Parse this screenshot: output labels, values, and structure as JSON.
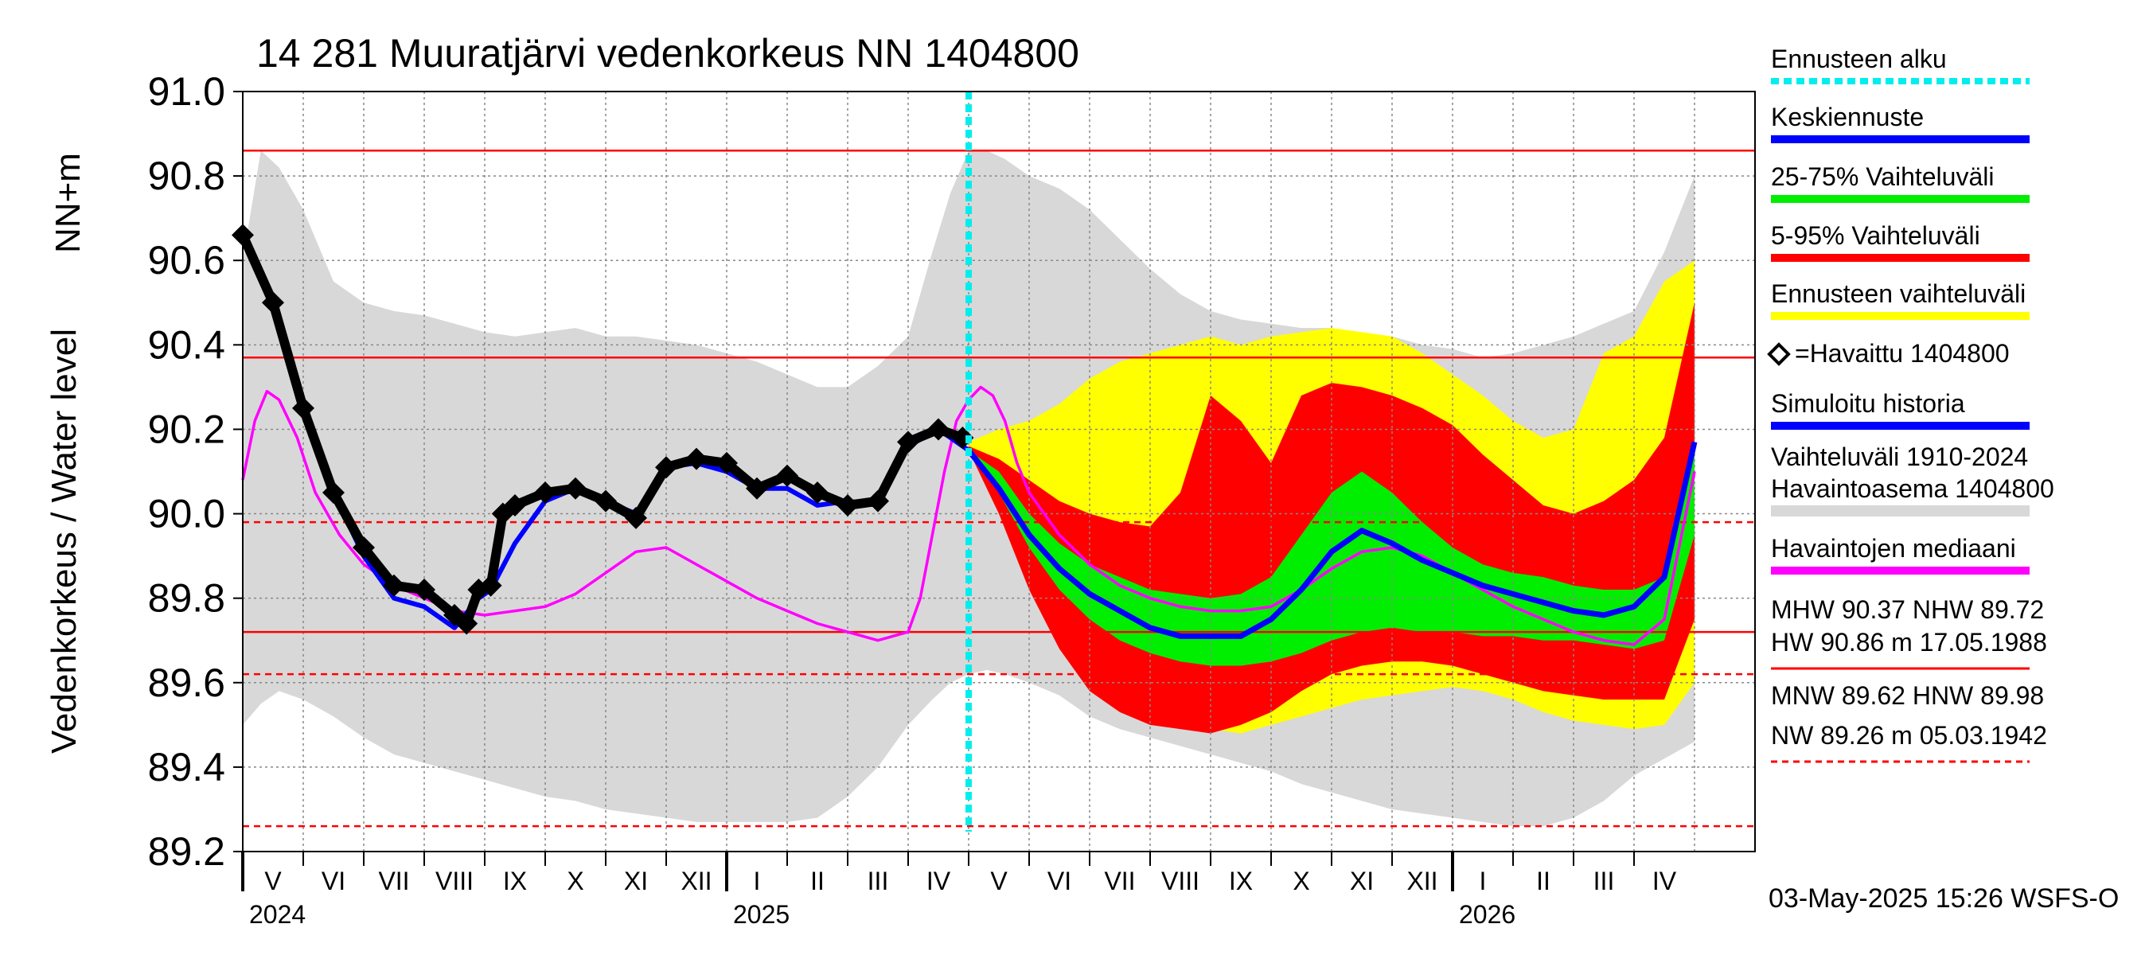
{
  "chart_data": {
    "type": "line",
    "title": "14 281 Muuratjärvi vedenkorkeus NN 1404800",
    "ylabel_line1": "NN+m",
    "ylabel_line2": "Vedenkorkeus / Water level",
    "ylim": [
      89.2,
      91.0
    ],
    "yticks": [
      89.2,
      89.4,
      89.6,
      89.8,
      90.0,
      90.2,
      90.4,
      90.6,
      90.8,
      91.0
    ],
    "x_axis": {
      "start_month_index": 0,
      "n_months": 25,
      "forecast_start": 12.0
    },
    "month_labels": [
      "V",
      "VI",
      "VII",
      "VIII",
      "IX",
      "X",
      "XI",
      "XII",
      "I",
      "II",
      "III",
      "IV",
      "V",
      "VI",
      "VII",
      "VIII",
      "IX",
      "X",
      "XI",
      "XII",
      "I",
      "II",
      "III",
      "IV"
    ],
    "year_labels": [
      {
        "label": "2024",
        "at_month": 0
      },
      {
        "label": "2025",
        "at_month": 8
      },
      {
        "label": "2026",
        "at_month": 20
      }
    ],
    "reference_lines": [
      {
        "name": "HW",
        "value": 90.86,
        "style": "solid"
      },
      {
        "name": "MHW",
        "value": 90.37,
        "style": "solid"
      },
      {
        "name": "HNW",
        "value": 89.98,
        "style": "dashed"
      },
      {
        "name": "NHW",
        "value": 89.72,
        "style": "solid"
      },
      {
        "name": "MNW",
        "value": 89.62,
        "style": "dashed"
      },
      {
        "name": "NW",
        "value": 89.26,
        "style": "dashed"
      }
    ],
    "historical_range": {
      "x": [
        0,
        0.3,
        0.6,
        1.0,
        1.5,
        2.0,
        2.5,
        3.0,
        3.5,
        4.0,
        4.5,
        5.0,
        5.5,
        6.0,
        6.5,
        7.0,
        7.5,
        8.0,
        8.5,
        9.0,
        9.5,
        10.0,
        10.5,
        11.0,
        11.4,
        11.7,
        12.0,
        12.3,
        12.6,
        13.0,
        13.5,
        14.0,
        14.5,
        15.0,
        15.5,
        16.0,
        16.5,
        17.0,
        17.5,
        18.0,
        18.5,
        19.0,
        19.5,
        20.0,
        20.5,
        21.0,
        21.5,
        22.0,
        22.5,
        23.0,
        23.5,
        24.0
      ],
      "upper": [
        90.6,
        90.86,
        90.82,
        90.72,
        90.55,
        90.5,
        90.48,
        90.47,
        90.45,
        90.43,
        90.42,
        90.43,
        90.44,
        90.42,
        90.42,
        90.41,
        90.4,
        90.38,
        90.36,
        90.33,
        90.3,
        90.3,
        90.35,
        90.42,
        90.62,
        90.76,
        90.86,
        90.86,
        90.84,
        90.8,
        90.77,
        90.72,
        90.65,
        90.58,
        90.52,
        90.48,
        90.46,
        90.45,
        90.44,
        90.44,
        90.42,
        90.42,
        90.4,
        90.39,
        90.37,
        90.38,
        90.4,
        90.42,
        90.45,
        90.48,
        90.62,
        90.8
      ],
      "lower": [
        89.5,
        89.55,
        89.58,
        89.56,
        89.52,
        89.47,
        89.43,
        89.41,
        89.39,
        89.37,
        89.35,
        89.33,
        89.32,
        89.3,
        89.29,
        89.28,
        89.27,
        89.27,
        89.27,
        89.27,
        89.28,
        89.33,
        89.4,
        89.5,
        89.56,
        89.6,
        89.62,
        89.63,
        89.62,
        89.6,
        89.57,
        89.52,
        89.49,
        89.47,
        89.45,
        89.43,
        89.41,
        89.39,
        89.36,
        89.34,
        89.32,
        89.3,
        89.29,
        89.28,
        89.27,
        89.26,
        89.26,
        89.28,
        89.32,
        89.38,
        89.42,
        89.46
      ]
    },
    "bands": [
      {
        "name": "Ennusteen vaihteluväli",
        "color": "#ffff00",
        "x": [
          12.0,
          12.5,
          13.0,
          13.5,
          14.0,
          14.5,
          15.0,
          15.5,
          16.0,
          16.5,
          17.0,
          17.5,
          18.0,
          18.5,
          19.0,
          19.5,
          20.0,
          20.5,
          21.0,
          21.5,
          22.0,
          22.5,
          23.0,
          23.5,
          24.0
        ],
        "upper": [
          90.17,
          90.2,
          90.22,
          90.26,
          90.32,
          90.36,
          90.38,
          90.4,
          90.42,
          90.4,
          90.42,
          90.43,
          90.44,
          90.43,
          90.42,
          90.38,
          90.33,
          90.28,
          90.22,
          90.18,
          90.2,
          90.38,
          90.42,
          90.55,
          90.6
        ],
        "lower": [
          90.15,
          90.02,
          89.88,
          89.75,
          89.65,
          89.58,
          89.53,
          89.5,
          89.49,
          89.48,
          89.5,
          89.52,
          89.54,
          89.56,
          89.57,
          89.58,
          89.59,
          89.58,
          89.56,
          89.53,
          89.51,
          89.5,
          89.49,
          89.5,
          89.6
        ]
      },
      {
        "name": "5-95% Vaihteluväli",
        "color": "#ff0000",
        "x": [
          12.0,
          12.5,
          13.0,
          13.5,
          14.0,
          14.5,
          15.0,
          15.5,
          16.0,
          16.5,
          17.0,
          17.5,
          18.0,
          18.5,
          19.0,
          19.5,
          20.0,
          20.5,
          21.0,
          21.5,
          22.0,
          22.5,
          23.0,
          23.5,
          24.0
        ],
        "upper": [
          90.16,
          90.13,
          90.08,
          90.03,
          90.0,
          89.98,
          89.97,
          90.05,
          90.28,
          90.22,
          90.12,
          90.28,
          90.31,
          90.3,
          90.28,
          90.25,
          90.21,
          90.14,
          90.08,
          90.02,
          90.0,
          90.03,
          90.08,
          90.18,
          90.5
        ],
        "lower": [
          90.15,
          90.0,
          89.82,
          89.68,
          89.58,
          89.53,
          89.5,
          89.49,
          89.48,
          89.5,
          89.53,
          89.58,
          89.62,
          89.64,
          89.65,
          89.65,
          89.64,
          89.62,
          89.6,
          89.58,
          89.57,
          89.56,
          89.56,
          89.56,
          89.75
        ]
      },
      {
        "name": "25-75% Vaihteluväli",
        "color": "#00ee00",
        "x": [
          12.0,
          12.5,
          13.0,
          13.5,
          14.0,
          14.5,
          15.0,
          15.5,
          16.0,
          16.5,
          17.0,
          17.5,
          18.0,
          18.5,
          19.0,
          19.5,
          20.0,
          20.5,
          21.0,
          21.5,
          22.0,
          22.5,
          23.0,
          23.5,
          24.0
        ],
        "upper": [
          90.15,
          90.1,
          90.0,
          89.93,
          89.88,
          89.85,
          89.82,
          89.81,
          89.8,
          89.81,
          89.85,
          89.95,
          90.05,
          90.1,
          90.05,
          89.98,
          89.92,
          89.88,
          89.86,
          89.85,
          89.83,
          89.82,
          89.82,
          89.85,
          90.15
        ],
        "lower": [
          90.15,
          90.05,
          89.92,
          89.82,
          89.75,
          89.7,
          89.67,
          89.65,
          89.64,
          89.64,
          89.65,
          89.67,
          89.7,
          89.72,
          89.73,
          89.72,
          89.72,
          89.71,
          89.71,
          89.7,
          89.7,
          89.69,
          89.68,
          89.7,
          89.95
        ]
      }
    ],
    "series": [
      {
        "name": "Havaintojen mediaani",
        "color": "#ff00ff",
        "x": [
          0,
          0.2,
          0.4,
          0.6,
          0.9,
          1.2,
          1.6,
          2.0,
          2.5,
          3.0,
          3.5,
          4.0,
          4.5,
          5.0,
          5.5,
          6.0,
          6.5,
          7.0,
          7.5,
          8.0,
          8.5,
          9.0,
          9.5,
          10.0,
          10.5,
          11.0,
          11.2,
          11.4,
          11.6,
          11.8,
          12.0,
          12.2,
          12.4,
          12.6,
          12.8,
          13.0,
          13.5,
          14.0,
          14.5,
          15.0,
          15.5,
          16.0,
          16.5,
          17.0,
          17.5,
          18.0,
          18.5,
          19.0,
          19.5,
          20.0,
          20.5,
          21.0,
          21.5,
          22.0,
          22.5,
          23.0,
          23.5,
          24.0
        ],
        "values": [
          90.08,
          90.22,
          90.29,
          90.27,
          90.18,
          90.05,
          89.95,
          89.88,
          89.83,
          89.8,
          89.77,
          89.76,
          89.77,
          89.78,
          89.81,
          89.86,
          89.91,
          89.92,
          89.88,
          89.84,
          89.8,
          89.77,
          89.74,
          89.72,
          89.7,
          89.72,
          89.8,
          89.95,
          90.1,
          90.22,
          90.27,
          90.3,
          90.28,
          90.22,
          90.12,
          90.05,
          89.95,
          89.88,
          89.83,
          89.8,
          89.78,
          89.77,
          89.77,
          89.78,
          89.82,
          89.87,
          89.91,
          89.92,
          89.9,
          89.86,
          89.82,
          89.78,
          89.75,
          89.72,
          89.7,
          89.69,
          89.75,
          90.1
        ]
      },
      {
        "name": "Keskiennuste",
        "color": "#0000ff",
        "x": [
          12.0,
          12.5,
          13.0,
          13.5,
          14.0,
          14.5,
          15.0,
          15.5,
          16.0,
          16.5,
          17.0,
          17.5,
          18.0,
          18.5,
          19.0,
          19.5,
          20.0,
          20.5,
          21.0,
          21.5,
          22.0,
          22.5,
          23.0,
          23.5,
          24.0
        ],
        "values": [
          90.15,
          90.06,
          89.95,
          89.87,
          89.81,
          89.77,
          89.73,
          89.71,
          89.71,
          89.71,
          89.75,
          89.82,
          89.91,
          89.96,
          89.93,
          89.89,
          89.86,
          89.83,
          89.81,
          89.79,
          89.77,
          89.76,
          89.78,
          89.85,
          90.17
        ]
      },
      {
        "name": "Simuloitu historia",
        "color": "#0000ff",
        "x": [
          0,
          0.5,
          1.0,
          1.5,
          2.0,
          2.5,
          3.0,
          3.5,
          3.9,
          4.1,
          4.5,
          5.0,
          5.5,
          6.0,
          6.5,
          7.0,
          7.5,
          8.0,
          8.5,
          9.0,
          9.5,
          10.0,
          10.5,
          11.0,
          11.5,
          12.0
        ],
        "values": [
          90.66,
          90.5,
          90.25,
          90.05,
          89.9,
          89.8,
          89.78,
          89.73,
          89.8,
          89.82,
          89.93,
          90.03,
          90.06,
          90.03,
          90.0,
          90.11,
          90.12,
          90.1,
          90.06,
          90.06,
          90.02,
          90.03,
          90.02,
          90.16,
          90.2,
          90.15
        ]
      },
      {
        "name": "Havaittu 1404800",
        "color": "#000000",
        "x": [
          0,
          0.5,
          1.0,
          1.5,
          2.0,
          2.5,
          3.0,
          3.5,
          3.7,
          3.9,
          4.1,
          4.3,
          4.5,
          5.0,
          5.5,
          6.0,
          6.5,
          7.0,
          7.5,
          8.0,
          8.5,
          9.0,
          9.5,
          10.0,
          10.5,
          11.0,
          11.5,
          11.9
        ],
        "values": [
          90.66,
          90.5,
          90.25,
          90.05,
          89.92,
          89.83,
          89.82,
          89.76,
          89.74,
          89.82,
          89.83,
          90.0,
          90.02,
          90.05,
          90.06,
          90.03,
          89.99,
          90.11,
          90.13,
          90.12,
          90.06,
          90.09,
          90.05,
          90.02,
          90.03,
          90.17,
          90.2,
          90.18
        ]
      }
    ],
    "legend": [
      {
        "label": "Ennusteen alku",
        "color": "#00eeee",
        "style": "dotted"
      },
      {
        "label": "Keskiennuste",
        "color": "#0000ff",
        "style": "line"
      },
      {
        "label": "25-75% Vaihteluväli",
        "color": "#00ee00",
        "style": "line"
      },
      {
        "label": "5-95% Vaihteluväli",
        "color": "#ff0000",
        "style": "line"
      },
      {
        "label": "Ennusteen vaihteluväli",
        "color": "#ffff00",
        "style": "line"
      },
      {
        "label": "=Havaittu 1404800",
        "color": "#000000",
        "style": "diamond"
      },
      {
        "label": "Simuloitu historia",
        "color": "#0000ff",
        "style": "line"
      },
      {
        "label": "Vaihteluväli 1910-2024",
        "color": "#d8d8d8",
        "style": "none"
      },
      {
        "label": " Havaintoasema 1404800",
        "color": "#d8d8d8",
        "style": "line"
      },
      {
        "label": "Havaintojen mediaani",
        "color": "#ff00ff",
        "style": "line"
      }
    ],
    "stats": {
      "line1": "MHW  90.37 NHW  89.72",
      "line2": "HW  90.86 m 17.05.1988",
      "line3": "MNW  89.62 HNW  89.98",
      "line4": "NW  89.26 m 05.03.1942"
    },
    "footer": "03-May-2025 15:26 WSFS-O"
  },
  "colors": {
    "reference_line": "#ff0000",
    "grid": "#888888",
    "historical_fill": "#d8d8d8",
    "forecast_start_line": "#00eeee"
  }
}
